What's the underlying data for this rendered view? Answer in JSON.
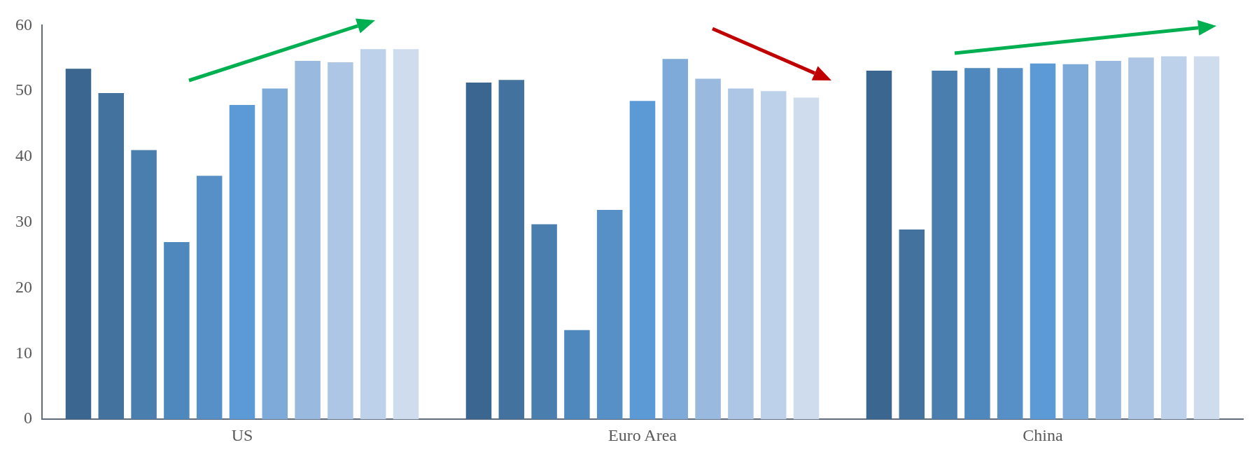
{
  "chart_data": {
    "type": "bar",
    "categories": [
      "US",
      "Euro Area",
      "China"
    ],
    "series": [
      {
        "color": "#3a6690",
        "values": [
          53.4,
          51.3,
          53.1
        ]
      },
      {
        "color": "#43729f",
        "values": [
          49.7,
          51.7,
          28.9
        ]
      },
      {
        "color": "#4a7eae",
        "values": [
          41.0,
          29.7,
          53.1
        ]
      },
      {
        "color": "#4f88bd",
        "values": [
          27.0,
          13.6,
          53.5
        ]
      },
      {
        "color": "#5690c7",
        "values": [
          37.1,
          31.9,
          53.5
        ]
      },
      {
        "color": "#5b9ad5",
        "values": [
          47.9,
          48.5,
          54.2
        ]
      },
      {
        "color": "#7eaad9",
        "values": [
          50.4,
          54.9,
          54.1
        ]
      },
      {
        "color": "#99b9df",
        "values": [
          54.6,
          51.9,
          54.6
        ]
      },
      {
        "color": "#aec6e5",
        "values": [
          54.4,
          50.4,
          55.1
        ]
      },
      {
        "color": "#bdd1ea",
        "values": [
          56.4,
          50.0,
          55.3
        ]
      },
      {
        "color": "#cfdcee",
        "values": [
          56.4,
          49.0,
          55.3
        ]
      }
    ],
    "ylim": [
      0,
      60
    ],
    "yticks": [
      0,
      10,
      20,
      30,
      40,
      50,
      60
    ],
    "grid": false,
    "legend": false
  }
}
